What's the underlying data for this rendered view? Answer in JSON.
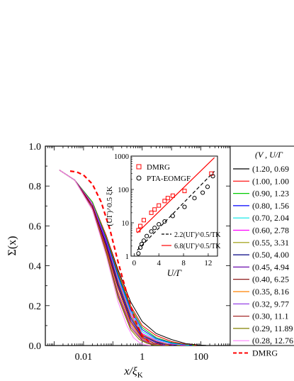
{
  "chart_data": [
    {
      "type": "line",
      "title": "",
      "xlabel_base": "x/ξ",
      "xlabel_sub": "K",
      "ylabel": "Σ(x)",
      "xscale": "log",
      "xlim": [
        0.0005,
        1000
      ],
      "ylim": [
        0,
        1.0
      ],
      "xticks": [
        0.01,
        1,
        100
      ],
      "xtick_labels": [
        "0.01",
        "1",
        "100"
      ],
      "yticks": [
        0,
        0.2,
        0.4,
        0.6,
        0.8,
        1.0
      ],
      "ytick_labels": [
        "0.0",
        "0.2",
        "0.4",
        "0.6",
        "0.8",
        "1.0"
      ],
      "legend_position": "right, outside plot (partially cut off)",
      "legend_header": "(V  ,  U/Γ",
      "series": [
        {
          "name": "(1.20, 0.69",
          "color": "#000000",
          "x": [
            0.0015,
            0.005,
            0.02,
            0.06,
            0.15,
            0.4,
            1,
            3,
            10,
            30,
            80,
            150
          ],
          "y": [
            0.88,
            0.83,
            0.72,
            0.55,
            0.38,
            0.22,
            0.12,
            0.06,
            0.03,
            0.01,
            0.003,
            0.001
          ]
        },
        {
          "name": "(1.00, 1.00",
          "color": "#ff0000",
          "x": [
            0.0015,
            0.005,
            0.02,
            0.06,
            0.15,
            0.4,
            1,
            3,
            10,
            30,
            70
          ],
          "y": [
            0.88,
            0.83,
            0.72,
            0.55,
            0.37,
            0.2,
            0.1,
            0.05,
            0.02,
            0.006,
            0.001
          ]
        },
        {
          "name": "(0.90, 1.23",
          "color": "#00cc00",
          "x": [
            0.0015,
            0.005,
            0.02,
            0.06,
            0.15,
            0.4,
            1,
            3,
            10,
            30,
            60
          ],
          "y": [
            0.88,
            0.83,
            0.72,
            0.54,
            0.36,
            0.19,
            0.09,
            0.04,
            0.015,
            0.004,
            0.001
          ]
        },
        {
          "name": "(0.80, 1.56",
          "color": "#0000ff",
          "x": [
            0.0015,
            0.005,
            0.02,
            0.06,
            0.15,
            0.4,
            1,
            3,
            10,
            30,
            50
          ],
          "y": [
            0.88,
            0.83,
            0.71,
            0.53,
            0.35,
            0.18,
            0.08,
            0.035,
            0.012,
            0.003,
            0.001
          ]
        },
        {
          "name": "(0.70, 2.04",
          "color": "#00e5e5",
          "x": [
            0.0015,
            0.005,
            0.02,
            0.06,
            0.15,
            0.4,
            1,
            3,
            10,
            25,
            40
          ],
          "y": [
            0.88,
            0.83,
            0.71,
            0.52,
            0.34,
            0.17,
            0.07,
            0.03,
            0.01,
            0.003,
            0.001
          ]
        },
        {
          "name": "(0.60, 2.78",
          "color": "#ff00ff",
          "x": [
            0.0015,
            0.005,
            0.02,
            0.06,
            0.15,
            0.4,
            1,
            3,
            8,
            20,
            30
          ],
          "y": [
            0.88,
            0.83,
            0.71,
            0.52,
            0.33,
            0.16,
            0.06,
            0.025,
            0.008,
            0.002,
            0.0005
          ]
        },
        {
          "name": "(0.55, 3.31",
          "color": "#999900",
          "x": [
            0.0015,
            0.005,
            0.02,
            0.06,
            0.15,
            0.4,
            1,
            3,
            8,
            20
          ],
          "y": [
            0.88,
            0.83,
            0.7,
            0.51,
            0.32,
            0.15,
            0.055,
            0.02,
            0.005,
            0.001
          ]
        },
        {
          "name": "(0.50, 4.00",
          "color": "#000080",
          "x": [
            0.0015,
            0.005,
            0.02,
            0.06,
            0.15,
            0.4,
            1,
            3,
            6,
            15
          ],
          "y": [
            0.88,
            0.83,
            0.7,
            0.51,
            0.31,
            0.14,
            0.05,
            0.018,
            0.005,
            0.001
          ]
        },
        {
          "name": "(0.45, 4.94",
          "color": "#6a0dad",
          "x": [
            0.0015,
            0.005,
            0.02,
            0.06,
            0.15,
            0.4,
            1,
            3,
            6,
            12
          ],
          "y": [
            0.88,
            0.83,
            0.7,
            0.5,
            0.3,
            0.13,
            0.045,
            0.014,
            0.004,
            0.001
          ]
        },
        {
          "name": "(0.40, 6.25",
          "color": "#800000",
          "x": [
            0.0015,
            0.005,
            0.02,
            0.06,
            0.15,
            0.4,
            1,
            2.5,
            5,
            10
          ],
          "y": [
            0.88,
            0.83,
            0.7,
            0.49,
            0.29,
            0.12,
            0.04,
            0.012,
            0.003,
            0.001
          ]
        },
        {
          "name": "(0.35, 8.16",
          "color": "#ff8000",
          "x": [
            0.0015,
            0.005,
            0.02,
            0.06,
            0.15,
            0.4,
            1,
            2,
            4,
            8
          ],
          "y": [
            0.88,
            0.83,
            0.69,
            0.48,
            0.27,
            0.11,
            0.035,
            0.012,
            0.003,
            0.001
          ]
        },
        {
          "name": "(0.32, 9.77",
          "color": "#8a2be2",
          "x": [
            0.0015,
            0.005,
            0.02,
            0.06,
            0.15,
            0.4,
            1,
            2,
            3.5,
            6
          ],
          "y": [
            0.88,
            0.83,
            0.69,
            0.47,
            0.26,
            0.1,
            0.03,
            0.01,
            0.003,
            0.001
          ]
        },
        {
          "name": "(0.30, 11.1",
          "color": "#a52a2a",
          "x": [
            0.0015,
            0.005,
            0.02,
            0.06,
            0.15,
            0.4,
            1,
            2,
            3,
            5
          ],
          "y": [
            0.88,
            0.83,
            0.69,
            0.47,
            0.25,
            0.09,
            0.025,
            0.008,
            0.002,
            0.0005
          ]
        },
        {
          "name": "(0.29, 11.89",
          "color": "#808000",
          "x": [
            0.0015,
            0.005,
            0.02,
            0.06,
            0.15,
            0.4,
            0.8,
            1.5,
            2.5,
            4
          ],
          "y": [
            0.88,
            0.83,
            0.68,
            0.46,
            0.24,
            0.08,
            0.03,
            0.01,
            0.002,
            0.0005
          ]
        },
        {
          "name": "(0.28, 12.76",
          "color": "#ff80ff",
          "x": [
            0.0015,
            0.005,
            0.02,
            0.06,
            0.15,
            0.3,
            0.5,
            0.8,
            1.2,
            2
          ],
          "y": [
            0.88,
            0.83,
            0.68,
            0.45,
            0.22,
            0.1,
            0.04,
            0.015,
            0.004,
            0.001
          ]
        },
        {
          "name": "DMRG",
          "color": "#ff0000",
          "dashed": true,
          "x": [
            0.0035,
            0.006,
            0.01,
            0.02,
            0.04,
            0.08,
            0.15,
            0.3,
            0.6,
            1,
            2
          ],
          "y": [
            0.875,
            0.87,
            0.855,
            0.81,
            0.72,
            0.58,
            0.42,
            0.26,
            0.12,
            0.05,
            0.01
          ]
        }
      ]
    },
    {
      "type": "scatter",
      "title": "",
      "xlabel": "U/Γ",
      "ylabel": "(UΓ)^0.5 ξK",
      "yscale": "log",
      "xlim": [
        -0.5,
        13.5
      ],
      "ylim": [
        1,
        1000
      ],
      "xticks": [
        0,
        4,
        8,
        12
      ],
      "xtick_labels": [
        "0",
        "4",
        "8",
        "12"
      ],
      "yticks": [
        1,
        10,
        100,
        1000
      ],
      "ytick_labels": [
        "1",
        "10",
        "100",
        "1000"
      ],
      "legend_position": "top-left (markers) and bottom-right (fits)",
      "series": [
        {
          "name": "DMRG",
          "marker": "square",
          "color": "#ff0000",
          "x": [
            0.69,
            1.0,
            1.56,
            2.78,
            3.31,
            4.0,
            4.94,
            5.45,
            6.25,
            8.16,
            12.5
          ],
          "y": [
            6,
            8,
            12,
            20,
            25,
            33,
            45,
            55,
            65,
            90,
            300
          ]
        },
        {
          "name": "PTA-EOMGF",
          "marker": "circle",
          "color": "#000000",
          "x": [
            0.69,
            1.0,
            1.23,
            1.56,
            2.04,
            2.78,
            3.31,
            4.0,
            4.94,
            6.25,
            8.16,
            9.77,
            11.1,
            11.89,
            12.76
          ],
          "y": [
            1.2,
            1.8,
            2.3,
            2.9,
            4,
            5.5,
            7,
            9,
            11,
            16,
            30,
            55,
            80,
            120,
            250
          ]
        }
      ],
      "fits": [
        {
          "name": "2.2(UΓ)^0.5/TK",
          "style": "dashed",
          "color": "#000000",
          "x": [
            0.5,
            13
          ],
          "y": [
            1.5,
            350
          ]
        },
        {
          "name": "6.8(UΓ)^0.5/TK",
          "style": "solid",
          "color": "#ff0000",
          "x": [
            0.5,
            13
          ],
          "y": [
            5,
            900
          ]
        }
      ]
    }
  ]
}
